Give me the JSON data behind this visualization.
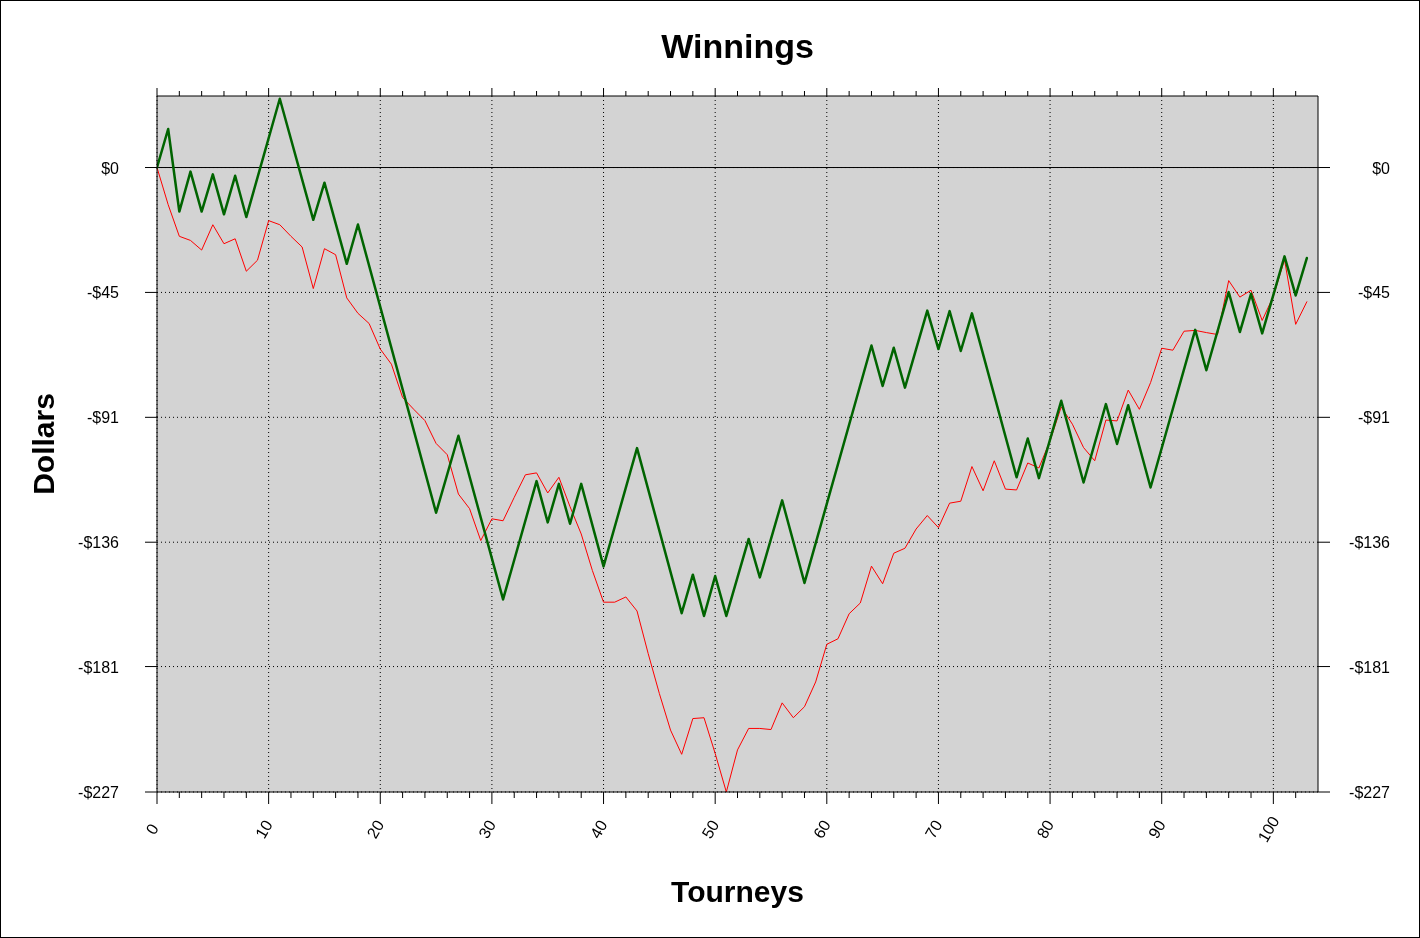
{
  "chart_data": {
    "type": "line",
    "title": "Winnings",
    "xlabel": "Tourneys",
    "ylabel": "Dollars",
    "xlim": [
      0,
      104
    ],
    "ylim": [
      -227,
      26
    ],
    "y2lim": [
      -227,
      26
    ],
    "xticks": [
      0,
      {
        "value": 2,
        "label": null
      },
      {
        "value": 4,
        "label": null
      },
      {
        "value": 6,
        "label": null
      },
      {
        "value": 8,
        "label": null
      },
      10,
      {
        "value": 12,
        "label": null
      },
      {
        "value": 14,
        "label": null
      },
      {
        "value": 16,
        "label": null
      },
      {
        "value": 18,
        "label": null
      },
      20,
      {
        "value": 22,
        "label": null
      },
      {
        "value": 24,
        "label": null
      },
      {
        "value": 26,
        "label": null
      },
      {
        "value": 28,
        "label": null
      },
      30,
      {
        "value": 32,
        "label": null
      },
      {
        "value": 34,
        "label": null
      },
      {
        "value": 36,
        "label": null
      },
      {
        "value": 38,
        "label": null
      },
      40,
      {
        "value": 42,
        "label": null
      },
      {
        "value": 44,
        "label": null
      },
      {
        "value": 46,
        "label": null
      },
      {
        "value": 48,
        "label": null
      },
      50,
      {
        "value": 52,
        "label": null
      },
      {
        "value": 54,
        "label": null
      },
      {
        "value": 56,
        "label": null
      },
      {
        "value": 58,
        "label": null
      },
      60,
      {
        "value": 62,
        "label": null
      },
      {
        "value": 64,
        "label": null
      },
      {
        "value": 66,
        "label": null
      },
      {
        "value": 68,
        "label": null
      },
      70,
      {
        "value": 72,
        "label": null
      },
      {
        "value": 74,
        "label": null
      },
      {
        "value": 76,
        "label": null
      },
      {
        "value": 78,
        "label": null
      },
      80,
      {
        "value": 82,
        "label": null
      },
      {
        "value": 84,
        "label": null
      },
      {
        "value": 86,
        "label": null
      },
      {
        "value": 88,
        "label": null
      },
      90,
      {
        "value": 92,
        "label": null
      },
      {
        "value": 94,
        "label": null
      },
      {
        "value": 96,
        "label": null
      },
      {
        "value": 98,
        "label": null
      },
      100,
      {
        "value": 102,
        "label": null
      }
    ],
    "yticks": [
      {
        "value": 0,
        "label": "$0"
      },
      {
        "value": -45.4,
        "label": "-$45"
      },
      {
        "value": -90.8,
        "label": "-$91"
      },
      {
        "value": -136.2,
        "label": "-$136"
      },
      {
        "value": -181.4,
        "label": "-$181"
      },
      {
        "value": -227,
        "label": "-$227"
      }
    ],
    "y2ticks": [
      {
        "value": 0,
        "label": "$0"
      },
      {
        "value": -45.4,
        "label": "-$45"
      },
      {
        "value": -90.8,
        "label": "-$91"
      },
      {
        "value": -136.2,
        "label": "-$136"
      },
      {
        "value": -181.4,
        "label": "-$181"
      },
      {
        "value": -227,
        "label": "-$227"
      }
    ],
    "grid": true,
    "ref_lines": [
      {
        "axis": "y",
        "value": 0,
        "color": "#000000"
      }
    ],
    "series": [
      {
        "color": "#ff0000",
        "x": [
          0,
          1,
          2,
          3,
          4,
          5,
          6,
          7,
          8,
          9,
          10,
          11,
          12,
          13,
          14,
          15,
          16,
          17,
          18,
          19,
          20,
          21,
          22,
          23,
          24,
          25,
          26,
          27,
          28,
          29,
          30,
          31,
          32,
          33,
          34,
          35,
          36,
          37,
          38,
          39,
          40,
          41,
          42,
          43,
          44,
          45,
          46,
          47,
          48,
          49,
          50,
          51,
          52,
          53,
          54,
          55,
          56,
          57,
          58,
          59,
          60,
          61,
          62,
          63,
          64,
          65,
          66,
          67,
          68,
          69,
          70,
          71,
          72,
          73,
          74,
          75,
          76,
          77,
          78,
          79,
          80,
          81,
          82,
          83,
          84,
          85,
          86,
          87,
          88,
          89,
          90,
          91,
          92,
          93,
          94,
          95,
          96,
          97,
          98,
          99,
          100,
          101,
          102,
          103
        ],
        "values": [
          0,
          -13.5,
          -25,
          -26.5,
          -30,
          -20.8,
          -27.7,
          -25.9,
          -37.7,
          -33.7,
          -19.3,
          -20.8,
          -25,
          -28.9,
          -44,
          -29.5,
          -31.7,
          -47.4,
          -53,
          -56.7,
          -66,
          -71.5,
          -83.6,
          -87.9,
          -92,
          -100.3,
          -104.4,
          -118.7,
          -124,
          -135.6,
          -127.7,
          -128.4,
          -119.9,
          -111.7,
          -111,
          -118.3,
          -112.6,
          -123.3,
          -133.2,
          -146.5,
          -158,
          -158,
          -156.1,
          -161.2,
          -176.7,
          -191.2,
          -204.5,
          -213.3,
          -200.3,
          -200,
          -213,
          -227,
          -211.7,
          -203.9,
          -203.9,
          -204.3,
          -194.6,
          -200,
          -196,
          -187,
          -173.3,
          -171.3,
          -162.2,
          -158.3,
          -144.9,
          -151.3,
          -140.2,
          -138.4,
          -131.4,
          -126.5,
          -130.9,
          -122,
          -121.3,
          -108.7,
          -117.5,
          -106.6,
          -116.9,
          -117.2,
          -107.4,
          -109.2,
          -99.3,
          -87,
          -93.3,
          -101.8,
          -106.6,
          -91.8,
          -92.1,
          -80.9,
          -87.9,
          -78.2,
          -65.7,
          -66.4,
          -59.5,
          -59.2,
          -60,
          -60.7,
          -41.1,
          -47.1,
          -44.6,
          -55.6,
          -46.8,
          -33.5,
          -57,
          -48.8
        ]
      },
      {
        "color": "#006400",
        "x": [
          0,
          1,
          2,
          3,
          4,
          5,
          6,
          7,
          8,
          11,
          14,
          15,
          17,
          18,
          25,
          27,
          31,
          34,
          35,
          36,
          37,
          38,
          40,
          43,
          47,
          48,
          49,
          50,
          51,
          53,
          54,
          56,
          58,
          64,
          65,
          66,
          67,
          69,
          70,
          71,
          72,
          73,
          77,
          78,
          79,
          81,
          83,
          85,
          86,
          87,
          89,
          93,
          94,
          96,
          97,
          98,
          99,
          101,
          102,
          103
        ],
        "values": [
          0,
          14,
          -16,
          -1.5,
          -16,
          -2.5,
          -17,
          -3,
          -18,
          25,
          -19,
          -5.5,
          -35,
          -20.7,
          -125.5,
          -97.5,
          -157,
          -114,
          -129,
          -115,
          -129.5,
          -115,
          -145,
          -102,
          -162,
          -148,
          -163,
          -148.5,
          -163,
          -135,
          -149,
          -121,
          -151,
          -64.7,
          -79.4,
          -65.5,
          -80,
          -52,
          -66,
          -52.2,
          -66.7,
          -53,
          -112.6,
          -98.5,
          -112.9,
          -84.8,
          -114.5,
          -86,
          -100.5,
          -86.4,
          -116.3,
          -59,
          -73.7,
          -45.3,
          -59.8,
          -45.9,
          -60.3,
          -32.3,
          -46.5,
          -32.9
        ]
      }
    ]
  }
}
